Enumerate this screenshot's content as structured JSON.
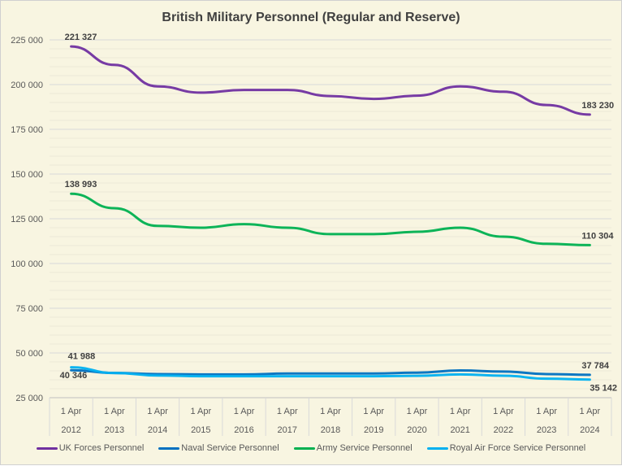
{
  "chart_data": {
    "type": "line",
    "title": "British Military Personnel (Regular and Reserve)",
    "categories": [
      [
        "1 Apr",
        "2012"
      ],
      [
        "1 Apr",
        "2013"
      ],
      [
        "1 Apr",
        "2014"
      ],
      [
        "1 Apr",
        "2015"
      ],
      [
        "1 Apr",
        "2016"
      ],
      [
        "1 Apr",
        "2017"
      ],
      [
        "1 Apr",
        "2018"
      ],
      [
        "1 Apr",
        "2019"
      ],
      [
        "1 Apr",
        "2020"
      ],
      [
        "1 Apr",
        "2021"
      ],
      [
        "1 Apr",
        "2022"
      ],
      [
        "1 Apr",
        "2023"
      ],
      [
        "1 Apr",
        "2024"
      ]
    ],
    "ylim": [
      25000,
      225000
    ],
    "yticks": [
      25000,
      50000,
      75000,
      100000,
      125000,
      150000,
      175000,
      200000,
      225000
    ],
    "ytick_labels": [
      "25 000",
      "50 000",
      "75 000",
      "100 000",
      "125 000",
      "150 000",
      "175 000",
      "200 000",
      "225 000"
    ],
    "grid": true,
    "legend_position": "bottom",
    "series": [
      {
        "name": "UK Forces Personnel",
        "color": "#7030a0",
        "values": [
          221327,
          211000,
          199000,
          195500,
          197000,
          197000,
          193600,
          192000,
          193800,
          199000,
          196000,
          188600,
          183230
        ],
        "labels": {
          "first": "221 327",
          "last": "183 230"
        }
      },
      {
        "name": "Naval Service Personnel",
        "color": "#0070c0",
        "values": [
          40346,
          38800,
          38200,
          38000,
          38000,
          38500,
          38500,
          38500,
          39000,
          40200,
          39600,
          38200,
          37784
        ],
        "labels": {
          "first": "40 346",
          "last": "37 784"
        }
      },
      {
        "name": "Army Service Personnel",
        "color": "#00b050",
        "values": [
          138993,
          130900,
          121000,
          120000,
          122000,
          120000,
          116400,
          116400,
          117700,
          120000,
          115000,
          111000,
          110304
        ],
        "labels": {
          "first": "138 993",
          "last": "110 304"
        }
      },
      {
        "name": "Royal Air Force Service Personnel",
        "color": "#00b0f0",
        "values": [
          41988,
          38800,
          37400,
          37000,
          37000,
          37000,
          37000,
          37000,
          37200,
          38000,
          37300,
          35600,
          35142
        ],
        "labels": {
          "first": "41 988",
          "last": "35 142"
        }
      }
    ]
  }
}
